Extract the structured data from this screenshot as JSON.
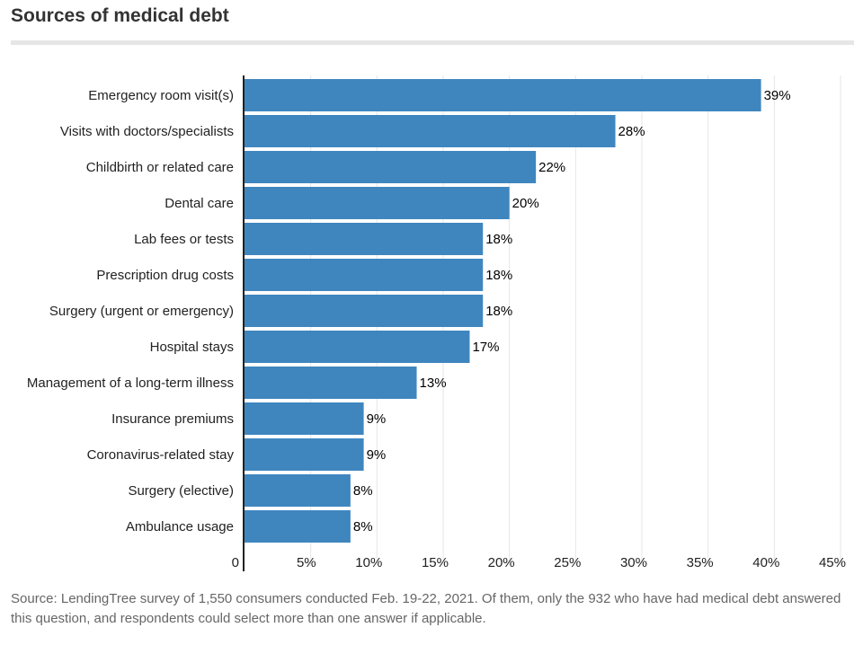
{
  "title": "Sources of medical debt",
  "source": "Source: LendingTree survey of 1,550 consumers conducted Feb. 19-22, 2021. Of them, only the 932 who have had medical debt answered this question, and respondents could select more than one answer if applicable.",
  "colors": {
    "bar": "#3f86bf",
    "grid": "#e6e6e6",
    "axis": "#222222"
  },
  "chart_data": {
    "type": "bar",
    "orientation": "horizontal",
    "title": "Sources of medical debt",
    "xlabel": "",
    "ylabel": "",
    "xlim": [
      0,
      45
    ],
    "grid": true,
    "categories": [
      "Emergency room visit(s)",
      "Visits with doctors/specialists",
      "Childbirth or related care",
      "Dental care",
      "Lab fees or tests",
      "Prescription drug costs",
      "Surgery (urgent or emergency)",
      "Hospital stays",
      "Management of a long-term illness",
      "Insurance premiums",
      "Coronavirus-related stay",
      "Surgery (elective)",
      "Ambulance usage"
    ],
    "values": [
      39,
      28,
      22,
      20,
      18,
      18,
      18,
      17,
      13,
      9,
      9,
      8,
      8
    ],
    "value_labels": [
      "39%",
      "28%",
      "22%",
      "20%",
      "18%",
      "18%",
      "18%",
      "17%",
      "13%",
      "9%",
      "9%",
      "8%",
      "8%"
    ],
    "ticks": [
      0,
      5,
      10,
      15,
      20,
      25,
      30,
      35,
      40,
      45
    ],
    "tick_labels": [
      "0",
      "5%",
      "10%",
      "15%",
      "20%",
      "25%",
      "30%",
      "35%",
      "40%",
      "45%"
    ]
  }
}
